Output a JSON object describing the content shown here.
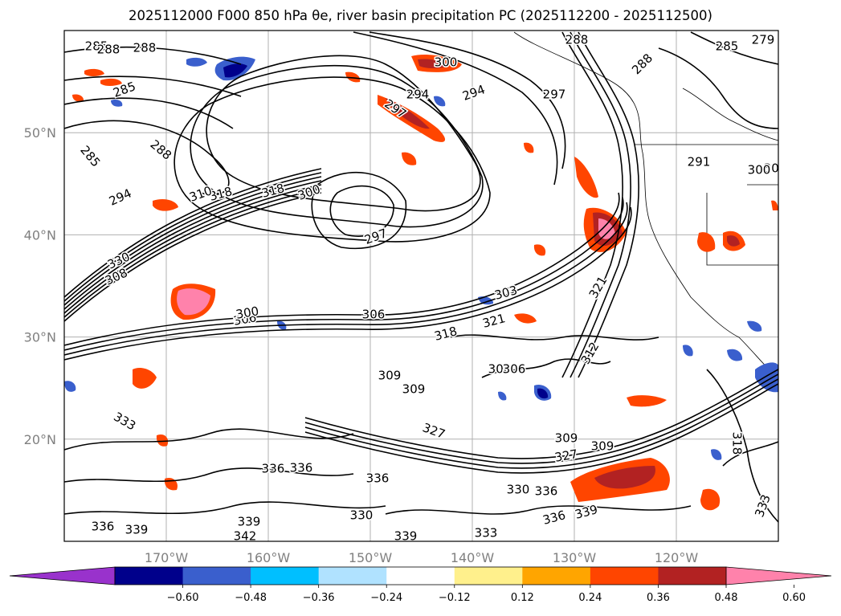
{
  "title": "2025112000 F000 850 hPa θe, river basin precipitation PC (2025112200 - 2025112500)",
  "map": {
    "lon_range": [
      -180,
      -110
    ],
    "lat_range": [
      10,
      60
    ],
    "lon_ticks": [
      "170°W",
      "160°W",
      "150°W",
      "140°W",
      "130°W",
      "120°W"
    ],
    "lat_ticks": [
      "20°N",
      "30°N",
      "40°N",
      "50°N"
    ],
    "gridlines": true
  },
  "contour_labels": [
    "285",
    "288",
    "285",
    "285",
    "288",
    "288",
    "294",
    "294",
    "297",
    "300",
    "300",
    "306",
    "300",
    "297",
    "294",
    "291",
    "300",
    "297",
    "288",
    "279",
    "285",
    "288",
    "318",
    "318",
    "300",
    "310",
    "330",
    "308",
    "306",
    "318",
    "321",
    "303",
    "321",
    "312",
    "306",
    "309",
    "327",
    "333",
    "336",
    "330",
    "333",
    "339",
    "339",
    "342",
    "336",
    "339",
    "330",
    "336",
    "339",
    "309",
    "306",
    "318",
    "327",
    "336",
    "336",
    "336",
    "333",
    "309",
    "309"
  ],
  "colorbar": {
    "colors": [
      "#9932cc",
      "#00008b",
      "#3a5fcd",
      "#00bfff",
      "#b0e2ff",
      "#ffffff",
      "#fff08c",
      "#ffa500",
      "#ff4500",
      "#b22222",
      "#ff82ab"
    ],
    "ticks": [
      "−0.60",
      "−0.48",
      "−0.36",
      "−0.24",
      "−0.12",
      "0.12",
      "0.24",
      "0.36",
      "0.48",
      "0.60"
    ],
    "extend": "both"
  }
}
